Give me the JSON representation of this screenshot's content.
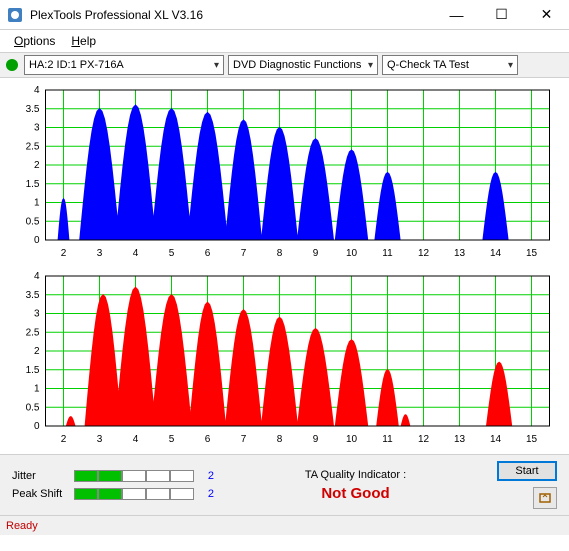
{
  "window": {
    "title": "PlexTools Professional XL V3.16"
  },
  "menu": {
    "options": "Options",
    "help": "Help",
    "options_u": "O",
    "help_u": "H"
  },
  "toolbar": {
    "device": "HA:2 ID:1   PX-716A",
    "func_group": "DVD Diagnostic Functions",
    "func": "Q-Check TA Test"
  },
  "charts": {
    "x_ticks": [
      2,
      3,
      4,
      5,
      6,
      7,
      8,
      9,
      10,
      11,
      12,
      13,
      14,
      15
    ],
    "y_ticks": [
      0,
      0.5,
      1,
      1.5,
      2,
      2.5,
      3,
      3.5,
      4
    ],
    "xlim": [
      1.5,
      15.5
    ],
    "ylim": [
      0,
      4
    ],
    "grid_color": "#00d000",
    "axis_color": "#000000",
    "background": "#ffffff",
    "tick_fontsize": 10,
    "top": {
      "color": "#0000ff",
      "peaks": [
        {
          "x": 2.0,
          "h": 1.1,
          "w": 0.15
        },
        {
          "x": 3.0,
          "h": 3.5,
          "w": 0.55
        },
        {
          "x": 4.0,
          "h": 3.6,
          "w": 0.55
        },
        {
          "x": 5.0,
          "h": 3.5,
          "w": 0.55
        },
        {
          "x": 6.0,
          "h": 3.4,
          "w": 0.55
        },
        {
          "x": 7.0,
          "h": 3.2,
          "w": 0.5
        },
        {
          "x": 8.0,
          "h": 3.0,
          "w": 0.5
        },
        {
          "x": 9.0,
          "h": 2.7,
          "w": 0.5
        },
        {
          "x": 10.0,
          "h": 2.4,
          "w": 0.45
        },
        {
          "x": 11.0,
          "h": 1.8,
          "w": 0.35
        },
        {
          "x": 14.0,
          "h": 1.8,
          "w": 0.35
        }
      ]
    },
    "bottom": {
      "color": "#ff0000",
      "peaks": [
        {
          "x": 2.2,
          "h": 0.25,
          "w": 0.12
        },
        {
          "x": 3.1,
          "h": 3.5,
          "w": 0.5
        },
        {
          "x": 4.0,
          "h": 3.7,
          "w": 0.55
        },
        {
          "x": 5.0,
          "h": 3.5,
          "w": 0.55
        },
        {
          "x": 6.0,
          "h": 3.3,
          "w": 0.5
        },
        {
          "x": 7.0,
          "h": 3.1,
          "w": 0.5
        },
        {
          "x": 8.0,
          "h": 2.9,
          "w": 0.5
        },
        {
          "x": 9.0,
          "h": 2.6,
          "w": 0.5
        },
        {
          "x": 10.0,
          "h": 2.3,
          "w": 0.45
        },
        {
          "x": 11.0,
          "h": 1.5,
          "w": 0.3
        },
        {
          "x": 11.5,
          "h": 0.3,
          "w": 0.12
        },
        {
          "x": 14.1,
          "h": 1.7,
          "w": 0.35
        }
      ]
    }
  },
  "jitter": {
    "label": "Jitter",
    "value": "2",
    "filled": 2,
    "total": 5
  },
  "peakshift": {
    "label": "Peak Shift",
    "value": "2",
    "filled": 2,
    "total": 5
  },
  "ta_quality": {
    "label": "TA Quality Indicator :",
    "value": "Not Good",
    "color": "#d00000"
  },
  "buttons": {
    "start": "Start"
  },
  "status": {
    "text": "Ready"
  }
}
